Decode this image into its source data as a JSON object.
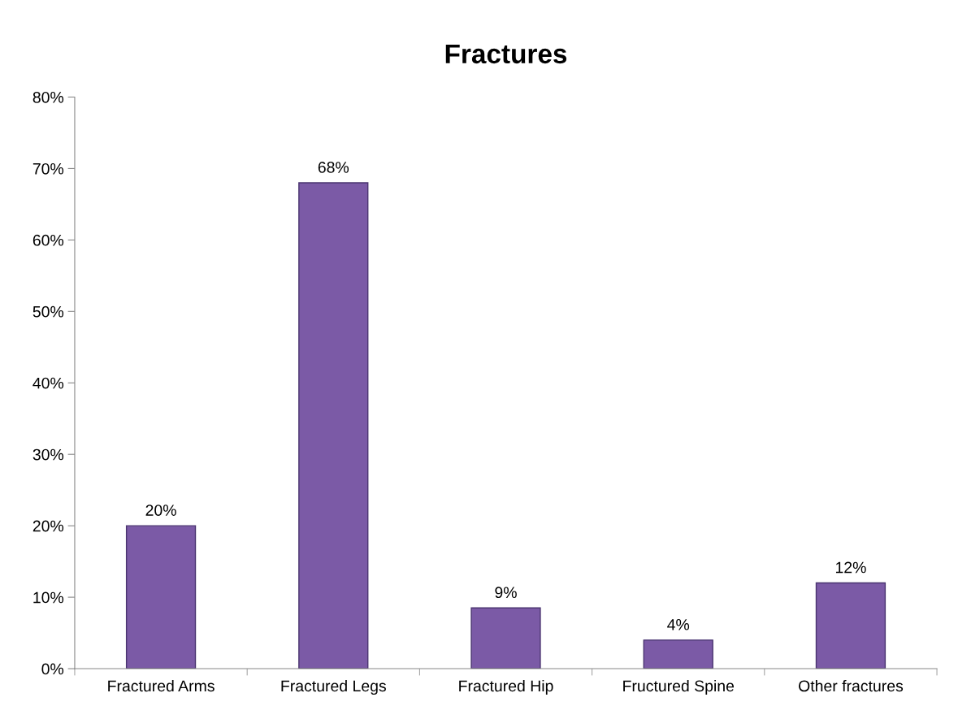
{
  "chart_data": {
    "type": "bar",
    "title": "Fractures",
    "categories": [
      "Fractured Arms",
      "Fractured Legs",
      "Fractured Hip",
      "Fructured Spine",
      "Other fractures"
    ],
    "values": [
      20,
      68,
      8.5,
      4,
      12
    ],
    "value_labels": [
      "20%",
      "68%",
      "9%",
      "4%",
      "12%"
    ],
    "color": "#7b5aa6",
    "ylim": [
      0,
      80
    ],
    "yticks": [
      {
        "value": 0,
        "label": "0%"
      },
      {
        "value": 10,
        "label": "10%"
      },
      {
        "value": 20,
        "label": "20%"
      },
      {
        "value": 30,
        "label": "30%"
      },
      {
        "value": 40,
        "label": "40%"
      },
      {
        "value": 50,
        "label": "50%"
      },
      {
        "value": 60,
        "label": "60%"
      },
      {
        "value": 70,
        "label": "70%"
      },
      {
        "value": 80,
        "label": "80%"
      }
    ],
    "grid": false,
    "legend": false
  }
}
